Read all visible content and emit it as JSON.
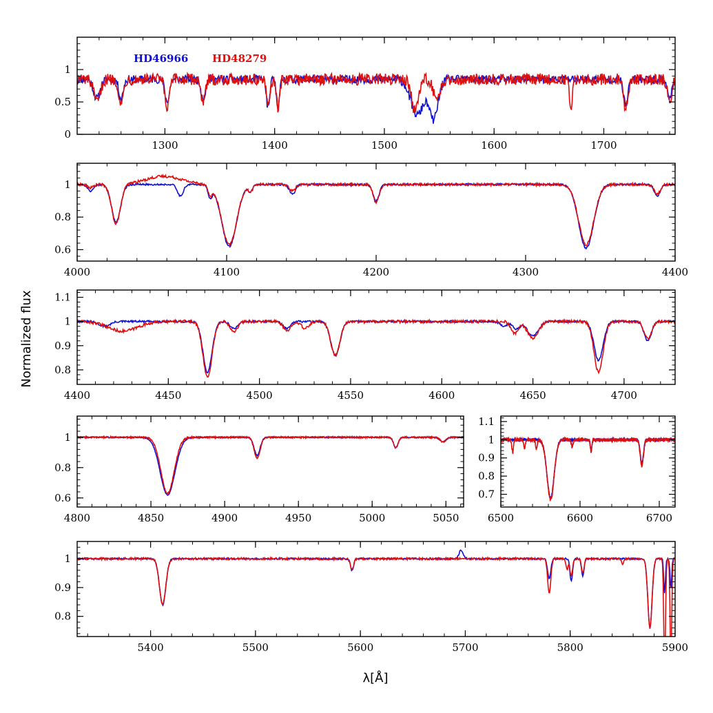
{
  "figure": {
    "ylabel": "Normalized flux",
    "xlabel": "λ[Å]"
  },
  "legend": [
    {
      "label": "HD46966",
      "color": "#1010d0"
    },
    {
      "label": "HD48279",
      "color": "#dd1010"
    }
  ],
  "colors": {
    "series1": "#1010d0",
    "series2": "#dd1010",
    "axes": "#000000"
  },
  "chart_data": [
    {
      "type": "line",
      "panel": "uv",
      "xlim": [
        1220,
        1765
      ],
      "ylim": [
        0,
        1.5
      ],
      "xticks": [
        1300,
        1400,
        1500,
        1600,
        1700
      ],
      "yticks": [
        0,
        0.5,
        1
      ],
      "ytick_labels": [
        "0",
        "0.5",
        "1"
      ],
      "continuum": 0.85,
      "noise": 0.09,
      "seed": 11,
      "series": [
        {
          "name": "HD46966",
          "lines": [
            [
              1238,
              -0.3,
              3
            ],
            [
              1260,
              -0.3,
              2
            ],
            [
              1302,
              -0.35,
              2
            ],
            [
              1335,
              -0.3,
              2
            ],
            [
              1394,
              -0.45,
              1.5
            ],
            [
              1403,
              -0.4,
              1.5
            ],
            [
              1530,
              -0.55,
              6
            ],
            [
              1545,
              -0.6,
              4
            ],
            [
              1720,
              -0.4,
              2
            ],
            [
              1760,
              -0.3,
              2
            ]
          ]
        },
        {
          "name": "HD48279",
          "lines": [
            [
              1238,
              -0.35,
              3
            ],
            [
              1260,
              -0.4,
              2
            ],
            [
              1302,
              -0.45,
              2
            ],
            [
              1335,
              -0.35,
              2
            ],
            [
              1394,
              -0.45,
              1.5
            ],
            [
              1403,
              -0.45,
              1.5
            ],
            [
              1528,
              -0.5,
              3
            ],
            [
              1548,
              -0.35,
              3
            ],
            [
              1720,
              -0.45,
              2
            ],
            [
              1760,
              -0.35,
              2
            ],
            [
              1670,
              -0.4,
              1.5
            ]
          ]
        }
      ]
    },
    {
      "type": "line",
      "panel": "blue1",
      "xlim": [
        4000,
        4400
      ],
      "ylim": [
        0.53,
        1.13
      ],
      "xticks": [
        4000,
        4100,
        4200,
        4300,
        4400
      ],
      "yticks": [
        0.6,
        0.8,
        1
      ],
      "ytick_labels": [
        "0.6",
        "0.8",
        "1"
      ],
      "continuum": 1.0,
      "noise": 0.008,
      "seed": 21,
      "series": [
        {
          "name": "HD46966",
          "lines": [
            [
              4009,
              -0.04,
              2
            ],
            [
              4026,
              -0.23,
              3
            ],
            [
              4069,
              -0.07,
              2
            ],
            [
              4089,
              -0.07,
              1.5
            ],
            [
              4101.7,
              -0.38,
              5
            ],
            [
              4116,
              -0.04,
              1.5
            ],
            [
              4144,
              -0.06,
              2
            ],
            [
              4200,
              -0.1,
              2
            ],
            [
              4340.5,
              -0.39,
              5
            ],
            [
              4388,
              -0.07,
              2
            ]
          ]
        },
        {
          "name": "HD48279",
          "lines": [
            [
              4009,
              -0.02,
              2
            ],
            [
              4026,
              -0.24,
              3
            ],
            [
              4089,
              -0.06,
              1.5
            ],
            [
              4101.7,
              -0.37,
              5
            ],
            [
              4116,
              -0.04,
              1.5
            ],
            [
              4144,
              -0.04,
              2
            ],
            [
              4200,
              -0.11,
              2
            ],
            [
              4340.5,
              -0.37,
              5
            ],
            [
              4388,
              -0.06,
              2
            ]
          ],
          "bumps": [
            [
              4058,
              0.05,
              12
            ]
          ]
        }
      ]
    },
    {
      "type": "line",
      "panel": "blue2",
      "xlim": [
        4400,
        4728
      ],
      "ylim": [
        0.74,
        1.13
      ],
      "xticks": [
        4400,
        4450,
        4500,
        4550,
        4600,
        4650,
        4700
      ],
      "yticks": [
        0.8,
        0.9,
        1,
        1.1
      ],
      "ytick_labels": [
        "0.8",
        "0.9",
        "1",
        "1.1"
      ],
      "continuum": 1.0,
      "noise": 0.006,
      "seed": 31,
      "series": [
        {
          "name": "HD46966",
          "lines": [
            [
              4415,
              -0.02,
              3
            ],
            [
              4471.5,
              -0.21,
              2.5
            ],
            [
              4486,
              -0.03,
              2
            ],
            [
              4515,
              -0.03,
              2
            ],
            [
              4541.6,
              -0.14,
              2.5
            ],
            [
              4634,
              -0.02,
              2
            ],
            [
              4641,
              -0.03,
              2
            ],
            [
              4650,
              -0.06,
              3
            ],
            [
              4686,
              -0.16,
              2.5
            ],
            [
              4713,
              -0.08,
              2
            ]
          ]
        },
        {
          "name": "HD48279",
          "lines": [
            [
              4425,
              -0.04,
              8
            ],
            [
              4471.5,
              -0.23,
              2.5
            ],
            [
              4486,
              -0.04,
              2
            ],
            [
              4515,
              -0.04,
              2
            ],
            [
              4525,
              -0.03,
              2
            ],
            [
              4541.6,
              -0.14,
              2.5
            ],
            [
              4640,
              -0.05,
              2
            ],
            [
              4650,
              -0.07,
              3
            ],
            [
              4686,
              -0.21,
              2.5
            ],
            [
              4713,
              -0.07,
              2
            ]
          ]
        }
      ]
    },
    {
      "type": "line",
      "panel": "hbeta",
      "xlim": [
        4800,
        5062
      ],
      "ylim": [
        0.54,
        1.14
      ],
      "xticks": [
        4800,
        4850,
        4900,
        4950,
        5000,
        5050
      ],
      "yticks": [
        0.6,
        0.8,
        1
      ],
      "ytick_labels": [
        "0.6",
        "0.8",
        "1"
      ],
      "continuum": 1.0,
      "noise": 0.005,
      "seed": 41,
      "series": [
        {
          "name": "HD46966",
          "lines": [
            [
              4861.3,
              -0.38,
              5
            ],
            [
              4922,
              -0.12,
              2
            ],
            [
              5016,
              -0.07,
              1.5
            ],
            [
              5048,
              -0.03,
              2
            ]
          ]
        },
        {
          "name": "HD48279",
          "lines": [
            [
              4861.3,
              -0.37,
              4.5
            ],
            [
              4922,
              -0.14,
              2
            ],
            [
              5016,
              -0.07,
              1.5
            ],
            [
              5048,
              -0.03,
              2
            ]
          ]
        }
      ]
    },
    {
      "type": "line",
      "panel": "halpha",
      "xlim": [
        6500,
        6720
      ],
      "ylim": [
        0.63,
        1.13
      ],
      "xticks": [
        6500,
        6600,
        6700
      ],
      "yticks": [
        0.7,
        0.8,
        0.9,
        1,
        1.1
      ],
      "ytick_labels": [
        "0.7",
        "0.8",
        "0.9",
        "1",
        "1.1"
      ],
      "continuum": 1.0,
      "noise": 0.01,
      "seed": 51,
      "series": [
        {
          "name": "HD46966",
          "lines": [
            [
              6562.8,
              -0.32,
              4.5
            ],
            [
              6614,
              -0.06,
              1
            ],
            [
              6678,
              -0.13,
              2
            ]
          ]
        },
        {
          "name": "HD48279",
          "lines": [
            [
              6562.8,
              -0.33,
              4.5
            ],
            [
              6614,
              -0.07,
              1
            ],
            [
              6678,
              -0.15,
              2
            ],
            [
              6515,
              -0.07,
              1
            ],
            [
              6530,
              -0.05,
              1
            ],
            [
              6545,
              -0.05,
              1
            ],
            [
              6590,
              -0.04,
              1
            ]
          ]
        }
      ]
    },
    {
      "type": "line",
      "panel": "red",
      "xlim": [
        5330,
        5900
      ],
      "ylim": [
        0.73,
        1.06
      ],
      "xticks": [
        5400,
        5500,
        5600,
        5700,
        5800,
        5900
      ],
      "yticks": [
        0.8,
        0.9,
        1
      ],
      "ytick_labels": [
        "0.8",
        "0.9",
        "1"
      ],
      "continuum": 1.0,
      "noise": 0.004,
      "seed": 61,
      "series": [
        {
          "name": "HD46966",
          "lines": [
            [
              5411.5,
              -0.16,
              3
            ],
            [
              5592,
              -0.04,
              1.5
            ],
            [
              5780,
              -0.07,
              1.5
            ],
            [
              5801,
              -0.08,
              1.2
            ],
            [
              5812,
              -0.06,
              1.2
            ],
            [
              5876,
              -0.24,
              2
            ],
            [
              5890,
              -0.12,
              0.8
            ],
            [
              5896,
              -0.1,
              0.8
            ]
          ],
          "bumps": [
            [
              5696,
              0.03,
              2
            ]
          ]
        },
        {
          "name": "HD48279",
          "lines": [
            [
              5411.5,
              -0.16,
              3
            ],
            [
              5592,
              -0.04,
              1.5
            ],
            [
              5780,
              -0.12,
              1.5
            ],
            [
              5797,
              -0.04,
              1
            ],
            [
              5801,
              -0.06,
              1.2
            ],
            [
              5812,
              -0.05,
              1.2
            ],
            [
              5850,
              -0.02,
              1
            ],
            [
              5876,
              -0.24,
              2
            ],
            [
              5890,
              -0.4,
              0.8
            ],
            [
              5896,
              -0.35,
              0.8
            ]
          ]
        }
      ]
    }
  ]
}
